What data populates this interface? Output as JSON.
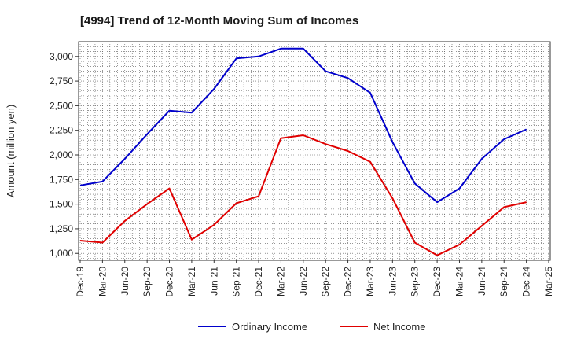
{
  "chart_data": {
    "type": "line",
    "title": "[4994]  Trend of 12-Month Moving Sum of Incomes",
    "xlabel": "",
    "ylabel": "Amount (million yen)",
    "ylim": [
      930,
      3150
    ],
    "yticks": [
      1000,
      1250,
      1500,
      1750,
      2000,
      2250,
      2500,
      2750,
      3000
    ],
    "ytick_labels": [
      "1,000",
      "1,250",
      "1,500",
      "1,750",
      "2,000",
      "2,250",
      "2,500",
      "2,750",
      "3,000"
    ],
    "categories": [
      "Dec-19",
      "Mar-20",
      "Jun-20",
      "Sep-20",
      "Dec-20",
      "Mar-21",
      "Jun-21",
      "Sep-21",
      "Dec-21",
      "Mar-22",
      "Jun-22",
      "Sep-22",
      "Dec-22",
      "Mar-23",
      "Jun-23",
      "Sep-23",
      "Dec-23",
      "Mar-24",
      "Jun-24",
      "Sep-24",
      "Dec-24",
      "Mar-25"
    ],
    "grid": true,
    "legend_position": "bottom-center",
    "series": [
      {
        "name": "Ordinary Income",
        "color": "#0000cc",
        "values": [
          1690,
          1730,
          1960,
          2210,
          2450,
          2430,
          2670,
          2980,
          3000,
          3080,
          3080,
          2850,
          2780,
          2630,
          2130,
          1710,
          1520,
          1660,
          1960,
          2160,
          2260,
          null
        ]
      },
      {
        "name": "Net Income",
        "color": "#e00000",
        "values": [
          1130,
          1110,
          1330,
          1500,
          1660,
          1140,
          1290,
          1510,
          1580,
          2170,
          2200,
          2110,
          2040,
          1930,
          1560,
          1110,
          980,
          1090,
          1280,
          1470,
          1520,
          null
        ]
      }
    ]
  }
}
